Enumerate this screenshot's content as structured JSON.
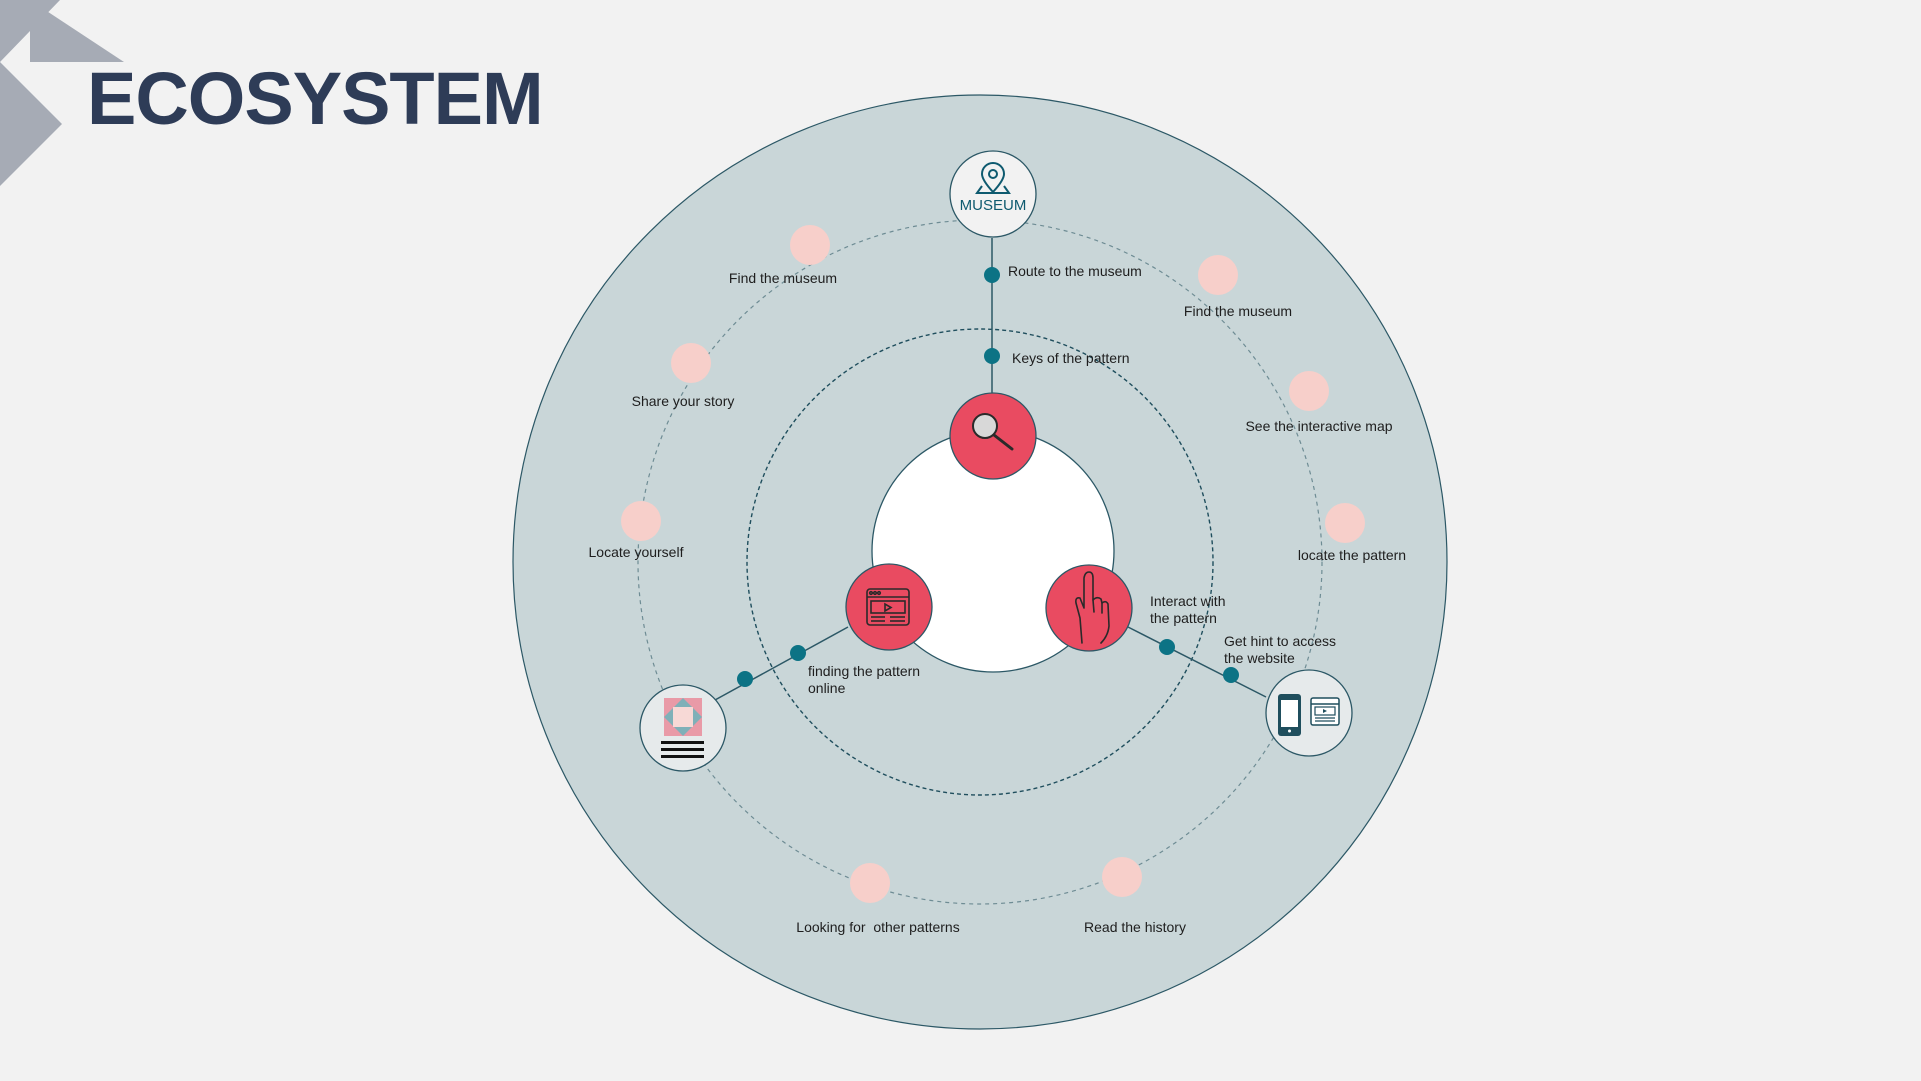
{
  "page": {
    "title": "ECOSYSTEM"
  },
  "colors": {
    "background": "#f2f2f2",
    "title": "#2e3c57",
    "outer_disc": "#c9d6d8",
    "accent_red": "#e94b61",
    "teal_dot": "#0c7385",
    "pink_dot": "#f7cfca",
    "logo_gray": "#a6abb5"
  },
  "hubs": {
    "museum": {
      "label": "MUSEUM",
      "icon": "map-pin-icon"
    },
    "pattern_card": {
      "icon": "quilt-pattern-icon"
    },
    "devices": {
      "icon": "phone-and-browser-icon"
    }
  },
  "core": {
    "search": {
      "icon": "magnifier-icon"
    },
    "online": {
      "icon": "browser-video-icon"
    },
    "interact": {
      "icon": "pointing-hand-icon"
    }
  },
  "spokes": {
    "route_to_museum": "Route to the museum",
    "keys_of_pattern": "Keys of the pattern",
    "finding_pattern_online": [
      "finding the pattern",
      "online"
    ],
    "interact_with_pattern": [
      "Interact with",
      "the pattern"
    ],
    "get_hint": [
      "Get hint to access",
      "the website"
    ]
  },
  "touchpoints": {
    "find_museum_left": "Find the museum",
    "share_story": "Share your story",
    "locate_yourself": "Locate yourself",
    "find_museum_right": "Find the museum",
    "see_interactive_map": "See the interactive map",
    "locate_pattern": "locate the pattern",
    "looking_other_patterns": "Looking for  other patterns",
    "read_history": "Read the history"
  }
}
